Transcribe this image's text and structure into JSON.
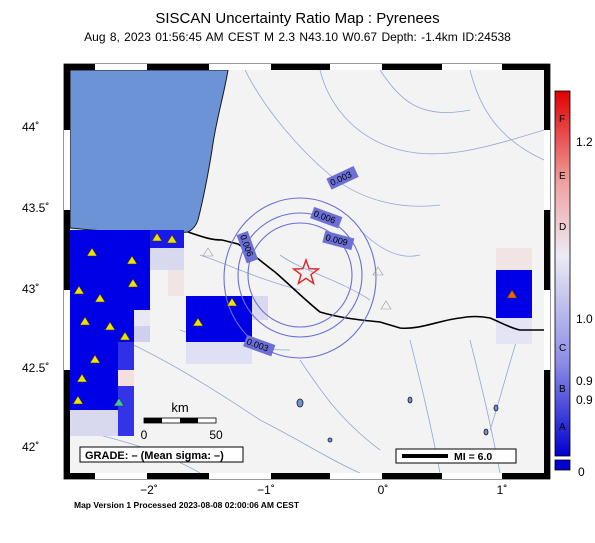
{
  "map": {
    "title": "SISCAN Uncertainty Ratio Map : Pyrenees",
    "subtitle": "Aug  8, 2023 01:56:45 AM CEST   M 2.3   N43.10 W0.67   Depth: -1.4km   ID:24538",
    "footer": "Map Version 1 Processed 2023-08-08 02:00:06 AM CEST",
    "lat_labels": [
      "44˚",
      "43.5˚",
      "43˚",
      "42.5˚",
      "42˚"
    ],
    "lon_labels": [
      "−2˚",
      "−1˚",
      "0˚",
      "1˚"
    ],
    "contour_labels": [
      "0.003",
      "0.006",
      "0.009",
      "0.006",
      "0.003"
    ],
    "grade_label": "GRADE: – (Mean sigma: –)",
    "scale": {
      "unit": "km",
      "start": "0",
      "end": "50"
    },
    "mi_label": "MI = 6.0",
    "epicenter": {
      "marker": "star-icon",
      "color": "#e02020"
    }
  },
  "colorbar": {
    "letters": [
      "F",
      "E",
      "D",
      "C",
      "B",
      "A"
    ],
    "values": [
      "1.2",
      "1.0",
      "0.9",
      "0.9",
      "0"
    ],
    "colors": {
      "low": "#0000d8",
      "mid": "#e8e8f8",
      "high": "#e00000"
    }
  }
}
